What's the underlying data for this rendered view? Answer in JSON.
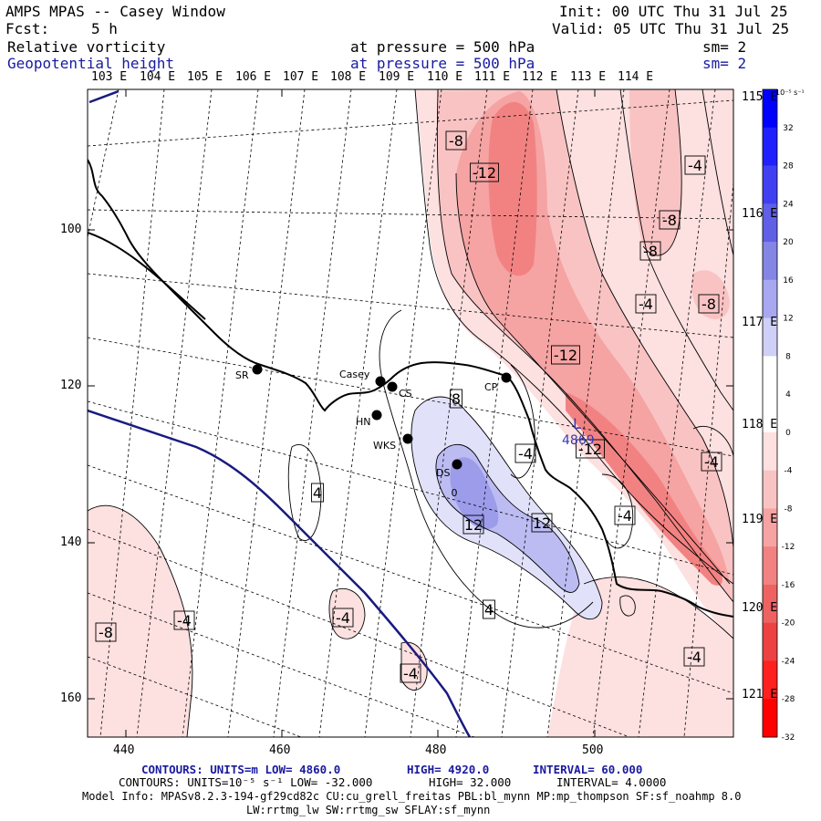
{
  "header": {
    "title": "AMPS MPAS -- Casey Window",
    "fcst_label": "Fcst:",
    "fcst_value": "5 h",
    "init": "Init: 00 UTC Thu 31 Jul 25",
    "valid": "Valid: 05 UTC Thu 31 Jul 25",
    "field1": {
      "name": "Relative vorticity",
      "level": "at pressure =  500 hPa",
      "smooth": "sm= 2"
    },
    "field2": {
      "name": "Geopotential height",
      "level": "at pressure =  500 hPa",
      "smooth": "sm= 2"
    }
  },
  "top_lon_labels": [
    "103 E",
    "104 E",
    "105 E",
    "106 E",
    "107 E",
    "108 E",
    "109 E",
    "110 E",
    "111 E",
    "112 E",
    "113 E",
    "114 E"
  ],
  "right_lon_labels": [
    "115 E",
    "116 E",
    "117 E",
    "118 E",
    "119 E",
    "120 E",
    "121 E"
  ],
  "x_ticks": [
    "440",
    "460",
    "480",
    "500"
  ],
  "y_ticks": [
    "100",
    "120",
    "140",
    "160"
  ],
  "colorbar": {
    "units": "10⁻⁵ s⁻¹",
    "labels": [
      "32",
      "28",
      "24",
      "20",
      "16",
      "12",
      "8",
      "4",
      "0",
      "-4",
      "-8",
      "-12",
      "-16",
      "-20",
      "-24",
      "-28",
      "-32"
    ],
    "colors": [
      "#0000ff",
      "#2020ff",
      "#4040f2",
      "#6060e6",
      "#8585e6",
      "#a8a8f0",
      "#cfcff7",
      "#ffffff",
      "#ffffff",
      "#fde0e0",
      "#f9c3c3",
      "#f5a3a3",
      "#f28282",
      "#ef6262",
      "#ed4242",
      "#ff2020",
      "#ff0000"
    ]
  },
  "stations": [
    {
      "name": "SR"
    },
    {
      "name": "Casey"
    },
    {
      "name": "CS"
    },
    {
      "name": "CP"
    },
    {
      "name": "HN"
    },
    {
      "name": "WKS"
    },
    {
      "name": "DS"
    }
  ],
  "contour_labels": [
    "-8",
    "-12",
    "-4",
    "-8",
    "-8",
    "-4",
    "-8",
    "-12",
    "8",
    "-4",
    "-12",
    "-4",
    "4",
    "12",
    "12",
    "-4",
    "4",
    "-4",
    "-8",
    "-4",
    "-4",
    "-4",
    "0"
  ],
  "low_center": {
    "symbol": "L",
    "value": "4869"
  },
  "footer": {
    "line1_a": "CONTOURS:  UNITS=m  LOW=  4860.0",
    "line1_b": "HIGH=  4920.0",
    "line1_c": "INTERVAL=  60.000",
    "line2_a": "CONTOURS:  UNITS=10⁻⁵ s⁻¹  LOW= -32.000",
    "line2_b": "HIGH=  32.000",
    "line2_c": "INTERVAL=  4.0000",
    "line3": "Model Info: MPASv8.2.3-194-gf29cd82c CU:cu_grell_freitas PBL:bl_mynn MP:mp_thompson SF:sf_noahmp 8.0",
    "line4": "LW:rrtmg_lw SW:rrtmg_sw SFLAY:sf_mynn"
  }
}
